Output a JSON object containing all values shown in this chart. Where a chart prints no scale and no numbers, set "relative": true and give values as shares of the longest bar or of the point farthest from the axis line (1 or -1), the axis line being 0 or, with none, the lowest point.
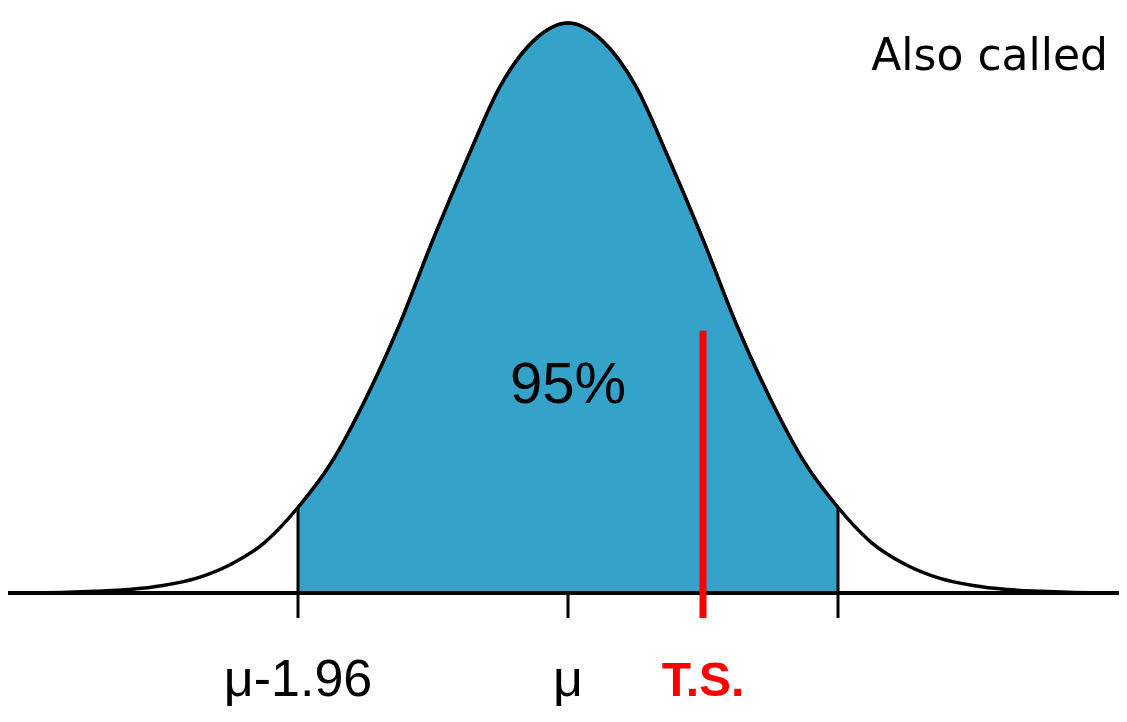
{
  "chart_data": {
    "type": "area",
    "relative": true,
    "categories": [
      null,
      null,
      null,
      null,
      null,
      null,
      null,
      null,
      "μ-1.96",
      null,
      null,
      null,
      null,
      null,
      null,
      null,
      "μ",
      null,
      null,
      null,
      "T.S.",
      null,
      null,
      null,
      null,
      null,
      null,
      null,
      null,
      null,
      null,
      null,
      null
    ],
    "series": [
      {
        "color": "#35a2c9",
        "values": [
          null,
          null,
          null,
          null,
          null,
          null,
          null,
          null,
          0.15,
          0.23,
          0.34,
          0.47,
          0.62,
          0.76,
          0.89,
          0.97,
          1,
          0.97,
          0.89,
          0.76,
          0.62,
          0.47,
          0.34,
          0.23,
          0.15,
          null,
          null,
          null,
          null,
          null,
          null,
          null,
          null
        ]
      },
      {
        "type": "line",
        "color": "#000000",
        "values": [
          0,
          0.001,
          0.003,
          0.006,
          0.013,
          0.026,
          0.05,
          0.088,
          0.15,
          0.23,
          0.34,
          0.47,
          0.62,
          0.76,
          0.89,
          0.97,
          1,
          0.97,
          0.89,
          0.76,
          0.62,
          0.47,
          0.34,
          0.23,
          0.15,
          0.088,
          0.05,
          0.026,
          0.013,
          0.006,
          0.003,
          0.001,
          0
        ]
      }
    ],
    "ref_lines": [
      {
        "axis": "x",
        "value": "T.S.",
        "color": "#ff0000"
      }
    ],
    "annotations": [
      "95%",
      "Also called"
    ]
  }
}
